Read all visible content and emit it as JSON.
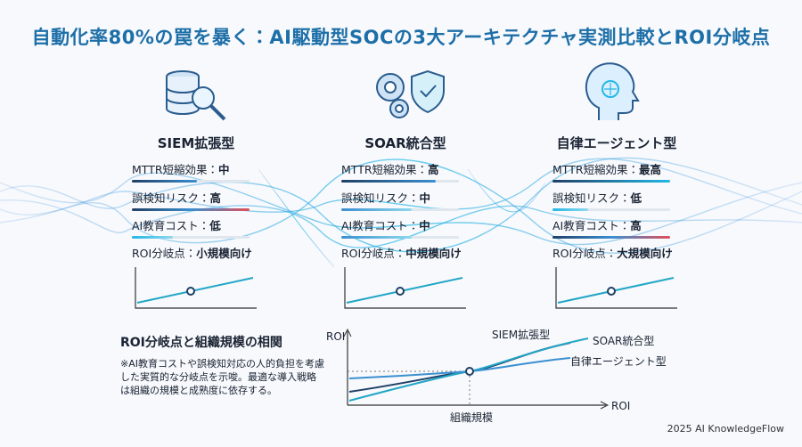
{
  "header": {
    "title": "自動化率80%の罠を暴く：AI駆動型SOCの3大アーキテクチャ実測比較とROI分岐点"
  },
  "columns": [
    {
      "name": "SIEM拡張型",
      "rows": [
        {
          "label": "MTTR短縮効果：",
          "value": "中"
        },
        {
          "label": "誤検知リスク：",
          "value": "高"
        },
        {
          "label": "AI教育コスト：",
          "value": "低"
        },
        {
          "label": "ROI分岐点：",
          "value": "小規模向け"
        }
      ]
    },
    {
      "name": "SOAR統合型",
      "rows": [
        {
          "label": "MTTR短縮効果：",
          "value": "高"
        },
        {
          "label": "誤検知リスク：",
          "value": "中"
        },
        {
          "label": "AI教育コスト：",
          "value": "中"
        },
        {
          "label": "ROI分岐点：",
          "value": "中規模向け"
        }
      ]
    },
    {
      "name": "自律エージェント型",
      "rows": [
        {
          "label": "MTTR短縮効果：",
          "value": "最高"
        },
        {
          "label": "誤検知リスク：",
          "value": "低"
        },
        {
          "label": "AI教育コスト：",
          "value": "高"
        },
        {
          "label": "ROI分岐点：",
          "value": "大規模向け"
        }
      ]
    }
  ],
  "correlation": {
    "title": "ROI分岐点と組織規模の相関",
    "note": "※AI教育コストや誤検知対応の人的負担を考慮した実質的な分岐点を示唆。最適な導入戦略は組織の規模と成熟度に依存する。",
    "y_label": "ROI",
    "x_label": "組織規模",
    "x_end_label": "ROI",
    "series": [
      "SIEM拡張型",
      "SOAR統合型",
      "自律エージェント型"
    ]
  },
  "footer": "2025 AI KnowledgeFlow"
}
